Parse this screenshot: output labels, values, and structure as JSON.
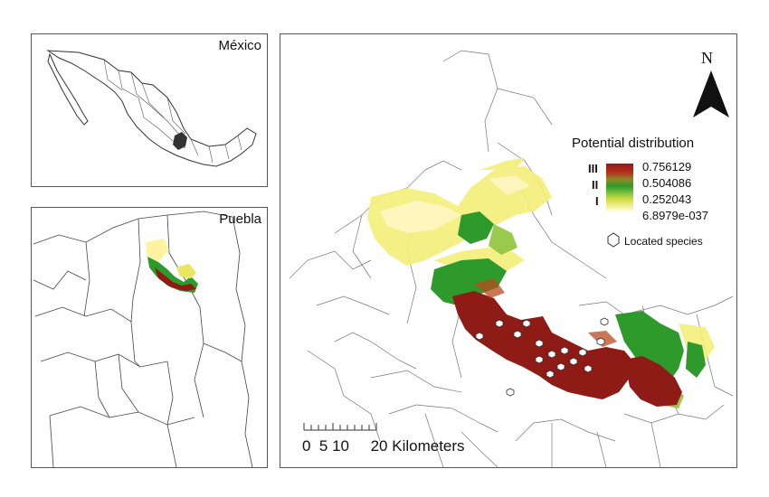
{
  "inset_mexico": {
    "label": "México"
  },
  "inset_puebla": {
    "label": "Puebla"
  },
  "north_arrow": {
    "letter": "N",
    "icon": "north-arrow-icon"
  },
  "legend": {
    "title": "Potential distribution",
    "classes": [
      "III",
      "II",
      "I"
    ],
    "values": [
      "0.756129",
      "0.504086",
      "0.252043",
      "6.8979e-037"
    ],
    "ramp_colors": [
      "#8e1b16",
      "#2e9a2c",
      "#d9e04a",
      "#fffbd0"
    ],
    "located_species_label": "Located species",
    "located_species_icon": "hexagon-marker-icon"
  },
  "scale_bar": {
    "text": "0  5 10     20 Kilometers"
  },
  "colors": {
    "high": "#8e1b16",
    "medium": "#2e9a2c",
    "low": "#d9e04a",
    "very_low": "#fff6b0",
    "border": "#333333",
    "highlight_state": "#333333"
  }
}
